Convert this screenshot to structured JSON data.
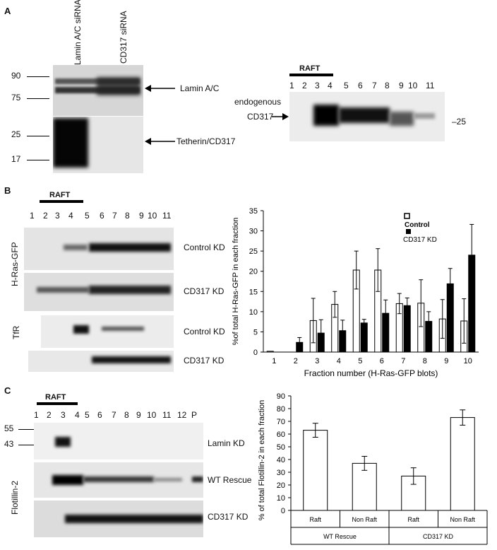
{
  "panelA": {
    "letter": "A",
    "lanes": [
      "Lamin A/C siRNA",
      "CD317 siRNA"
    ],
    "markers_top": [
      "90",
      "75"
    ],
    "markers_bottom": [
      "25",
      "17"
    ],
    "arrow_lamin": "Lamin A/C",
    "arrow_tetherin": "Tetherin/CD317",
    "raft": "RAFT",
    "fractions": [
      "1",
      "2",
      "3",
      "4",
      "5",
      "6",
      "7",
      "8",
      "9",
      "10",
      "11"
    ],
    "endogenous_line1": "endogenous",
    "endogenous_line2": "CD317",
    "marker_right": "–25"
  },
  "panelB": {
    "letter": "B",
    "raft": "RAFT",
    "fractions": [
      "1",
      "2",
      "3",
      "4",
      "5",
      "6",
      "7",
      "8",
      "9",
      "10",
      "11"
    ],
    "ylabel_hras": "H-Ras-GFP",
    "ylabel_tfr": "TfR",
    "row_labels": [
      "Control KD",
      "CD317 KD",
      "Control KD",
      "CD317 KD"
    ]
  },
  "panelC": {
    "letter": "C",
    "raft": "RAFT",
    "fractions": [
      "1",
      "2",
      "3",
      "4",
      "5",
      "6",
      "7",
      "8",
      "9",
      "10",
      "11",
      "12",
      "P"
    ],
    "markers": [
      "55",
      "43"
    ],
    "ylabel": "Flotillin-2",
    "row_labels": [
      "Lamin KD",
      "WT Rescue",
      "CD317 KD"
    ]
  },
  "chart_data": [
    {
      "type": "bar",
      "xlabel": "Fraction number (H-Ras-GFP blots)",
      "ylabel": "%of total H-Ras-GFP in each fraction",
      "ylim": [
        0,
        35
      ],
      "yticks": [
        0,
        5,
        10,
        15,
        20,
        25,
        30,
        35
      ],
      "categories": [
        "1",
        "2",
        "3",
        "4",
        "5",
        "6",
        "7",
        "8",
        "9",
        "10"
      ],
      "legend_position": "top-right",
      "series": [
        {
          "name": "Control",
          "fill": "#ffffff",
          "values": [
            0.2,
            0,
            7.8,
            11.8,
            20.3,
            20.3,
            12,
            12.1,
            8.2,
            7.7
          ],
          "errors": [
            0,
            0,
            5.5,
            3.2,
            4.7,
            5.3,
            2.5,
            5.8,
            4.8,
            5.5
          ]
        },
        {
          "name": "CD317 KD",
          "fill": "#000000",
          "values": [
            0,
            2.4,
            4.7,
            5.3,
            7.2,
            9.6,
            11.5,
            7.6,
            16.9,
            24
          ],
          "errors": [
            0,
            1.2,
            3.3,
            2.6,
            0.9,
            3.3,
            1.9,
            2.4,
            3.8,
            7.6
          ]
        }
      ]
    },
    {
      "type": "bar",
      "ylabel": "% of total Flotillin-2 in each fraction",
      "ylim": [
        0,
        90
      ],
      "yticks": [
        0,
        10,
        20,
        30,
        40,
        50,
        60,
        70,
        80,
        90
      ],
      "categories": [
        "Raft",
        "Non Raft",
        "Raft",
        "Non Raft"
      ],
      "groups": [
        "WT Rescue",
        "CD317 KD"
      ],
      "values": [
        63,
        37,
        27,
        73
      ],
      "errors": [
        5.5,
        5.5,
        6.5,
        6
      ]
    }
  ]
}
